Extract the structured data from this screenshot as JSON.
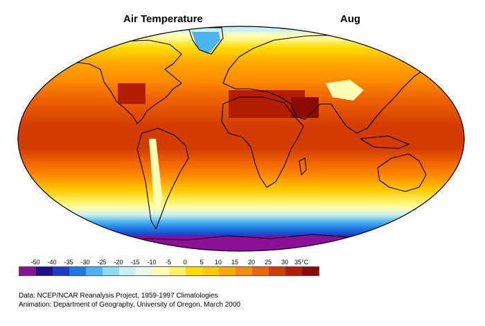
{
  "header": {
    "title": "Air Temperature",
    "month": "Aug"
  },
  "legend": {
    "labels": [
      "-50",
      "-40",
      "-35",
      "-30",
      "-25",
      "-20",
      "-15",
      "-10",
      "-5",
      "0",
      "5",
      "10",
      "15",
      "20",
      "25",
      "30",
      "35°C"
    ],
    "colors": [
      "#8b0f97",
      "#1e0f8c",
      "#1e3cc8",
      "#1e78e6",
      "#4bb4f0",
      "#8cdcf0",
      "#c8f0f0",
      "#e6fae6",
      "#ffffb4",
      "#fff064",
      "#ffdc00",
      "#ffc800",
      "#ffaa00",
      "#ff8c00",
      "#f06400",
      "#d23c00",
      "#b41e00",
      "#8c0a00"
    ]
  },
  "credits": {
    "data_line": "Data:  NCEP/NCAR Reanalysis Project, 1959-1997 Climatologies",
    "animation_line": "Animation:  Department of Geography, University of Oregon, March 2000"
  }
}
